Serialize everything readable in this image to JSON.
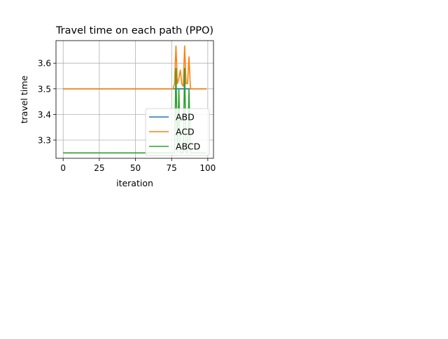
{
  "chart_data": {
    "type": "line",
    "title": "Travel time on each path (PPO)",
    "xlabel": "iteration",
    "ylabel": "travel time",
    "xlim": [
      -4.95,
      103.95
    ],
    "ylim": [
      3.229,
      3.688
    ],
    "xticks": [
      0,
      25,
      50,
      75,
      100
    ],
    "yticks": [
      3.3,
      3.4,
      3.5,
      3.6
    ],
    "xtick_labels": [
      "0",
      "25",
      "50",
      "75",
      "100"
    ],
    "ytick_labels": [
      "3.3",
      "3.4",
      "3.5",
      "3.6"
    ],
    "grid": true,
    "legend_position": "lower-right",
    "series": [
      {
        "name": "ABD",
        "color": "#1f77b4",
        "x": [
          0,
          76,
          77,
          78,
          79,
          80,
          81,
          82,
          83,
          84,
          85,
          86,
          87,
          88,
          89,
          99
        ],
        "y": [
          3.5,
          3.5,
          3.5,
          3.5,
          3.5,
          3.5,
          3.5,
          3.5,
          3.5,
          3.5,
          3.5,
          3.5,
          3.5,
          3.5,
          3.5,
          3.5
        ]
      },
      {
        "name": "ACD",
        "color": "#ff7f0e",
        "x": [
          0,
          76,
          77,
          78,
          79,
          80,
          81,
          82,
          83,
          84,
          85,
          86,
          87,
          88,
          89,
          99
        ],
        "y": [
          3.5,
          3.5,
          3.52,
          3.667,
          3.52,
          3.54,
          3.573,
          3.52,
          3.51,
          3.667,
          3.52,
          3.52,
          3.625,
          3.5,
          3.5,
          3.5
        ]
      },
      {
        "name": "ABCD",
        "color": "#2ca02c",
        "x": [
          0,
          76,
          77,
          78,
          79,
          80,
          81,
          82,
          83,
          84,
          85,
          86,
          87,
          88,
          89,
          99
        ],
        "y": [
          3.25,
          3.25,
          3.25,
          3.58,
          3.25,
          3.5,
          3.25,
          3.25,
          3.25,
          3.58,
          3.25,
          3.25,
          3.5,
          3.25,
          3.25,
          3.25
        ]
      }
    ]
  }
}
